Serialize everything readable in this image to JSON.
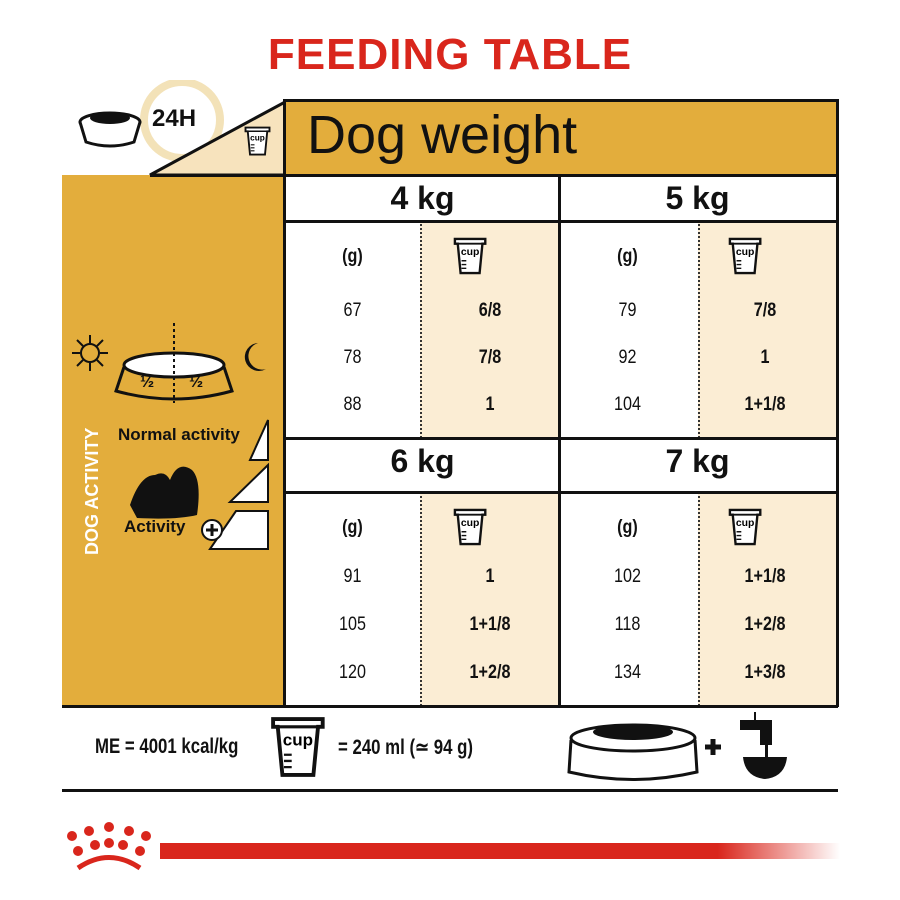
{
  "title": "FEEDING TABLE",
  "header": {
    "period": "24H",
    "cup_label": "cup",
    "dog_weight": "Dog weight"
  },
  "sidebar": {
    "half_left": "½",
    "half_right": "½",
    "normal_activity": "Normal activity",
    "activity": "Activity",
    "dog_activity": "DOG ACTIVITY"
  },
  "column_headers": {
    "grams": "(g)",
    "cup": "cup"
  },
  "weights": [
    {
      "label": "4 kg",
      "rows": [
        {
          "g": "67",
          "cup": "6/8"
        },
        {
          "g": "78",
          "cup": "7/8"
        },
        {
          "g": "88",
          "cup": "1"
        }
      ]
    },
    {
      "label": "5 kg",
      "rows": [
        {
          "g": "79",
          "cup": "7/8"
        },
        {
          "g": "92",
          "cup": "1"
        },
        {
          "g": "104",
          "cup": "1+1/8"
        }
      ]
    },
    {
      "label": "6 kg",
      "rows": [
        {
          "g": "91",
          "cup": "1"
        },
        {
          "g": "105",
          "cup": "1+1/8"
        },
        {
          "g": "120",
          "cup": "1+2/8"
        }
      ]
    },
    {
      "label": "7 kg",
      "rows": [
        {
          "g": "102",
          "cup": "1+1/8"
        },
        {
          "g": "118",
          "cup": "1+2/8"
        },
        {
          "g": "134",
          "cup": "1+3/8"
        }
      ]
    }
  ],
  "footer": {
    "energy": "ME = 4001 kcal/kg",
    "cup_equivalent": "= 240 ml (≃ 94 g)"
  },
  "colors": {
    "red": "#d9261c",
    "gold": "#e3ad3c",
    "cream": "#fbedd4"
  }
}
